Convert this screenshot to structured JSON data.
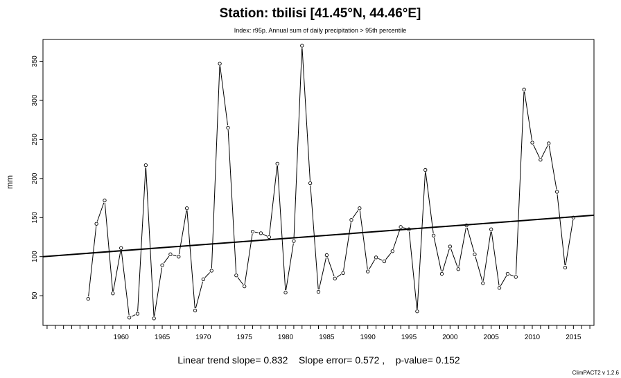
{
  "chart_data": {
    "type": "line",
    "title": "Station: tbilisi [41.45°N, 44.46°E]",
    "subtitle": "Index: r95p. Annual sum of daily precipitation > 95th percentile",
    "xlabel": "",
    "ylabel": "mm",
    "xlim": [
      1950.5,
      2017.5
    ],
    "ylim": [
      12,
      378
    ],
    "x_ticks": [
      1960,
      1965,
      1970,
      1975,
      1980,
      1985,
      1990,
      1995,
      2000,
      2005,
      2010,
      2015
    ],
    "y_ticks": [
      50,
      100,
      150,
      200,
      250,
      300,
      350
    ],
    "grid": false,
    "series": [
      {
        "style": "line-with-open-circles",
        "x": [
          1956,
          1957,
          1958,
          1959,
          1960,
          1961,
          1962,
          1963,
          1964,
          1965,
          1966,
          1967,
          1968,
          1969,
          1970,
          1971,
          1972,
          1973,
          1974,
          1975,
          1976,
          1977,
          1978,
          1979,
          1980,
          1981,
          1982,
          1983,
          1984,
          1985,
          1986,
          1987,
          1988,
          1989,
          1990,
          1991,
          1992,
          1993,
          1994,
          1995,
          1996,
          1997,
          1998,
          1999,
          2000,
          2001,
          2002,
          2003,
          2004,
          2005,
          2006,
          2007,
          2008,
          2009,
          2010,
          2011,
          2012,
          2013,
          2014,
          2015
        ],
        "values": [
          46,
          142,
          172,
          53,
          111,
          22,
          27,
          217,
          21,
          89,
          103,
          100,
          162,
          31,
          71,
          82,
          347,
          265,
          76,
          62,
          132,
          130,
          125,
          219,
          54,
          120,
          370,
          194,
          55,
          102,
          72,
          79,
          147,
          162,
          81,
          99,
          94,
          107,
          138,
          135,
          30,
          211,
          127,
          78,
          113,
          84,
          140,
          103,
          66,
          135,
          60,
          78,
          74,
          314,
          246,
          224,
          245,
          183,
          86,
          150
        ]
      },
      {
        "name": "Linear trend",
        "style": "trend-line",
        "x": [
          1950.5,
          2017.5
        ],
        "values": [
          100,
          153
        ]
      }
    ],
    "annotations": {
      "trend_text": "Linear trend slope= 0.832    Slope error= 0.572 ,    p-value= 0.152",
      "version": "ClimPACT2 v 1.2.6"
    }
  }
}
